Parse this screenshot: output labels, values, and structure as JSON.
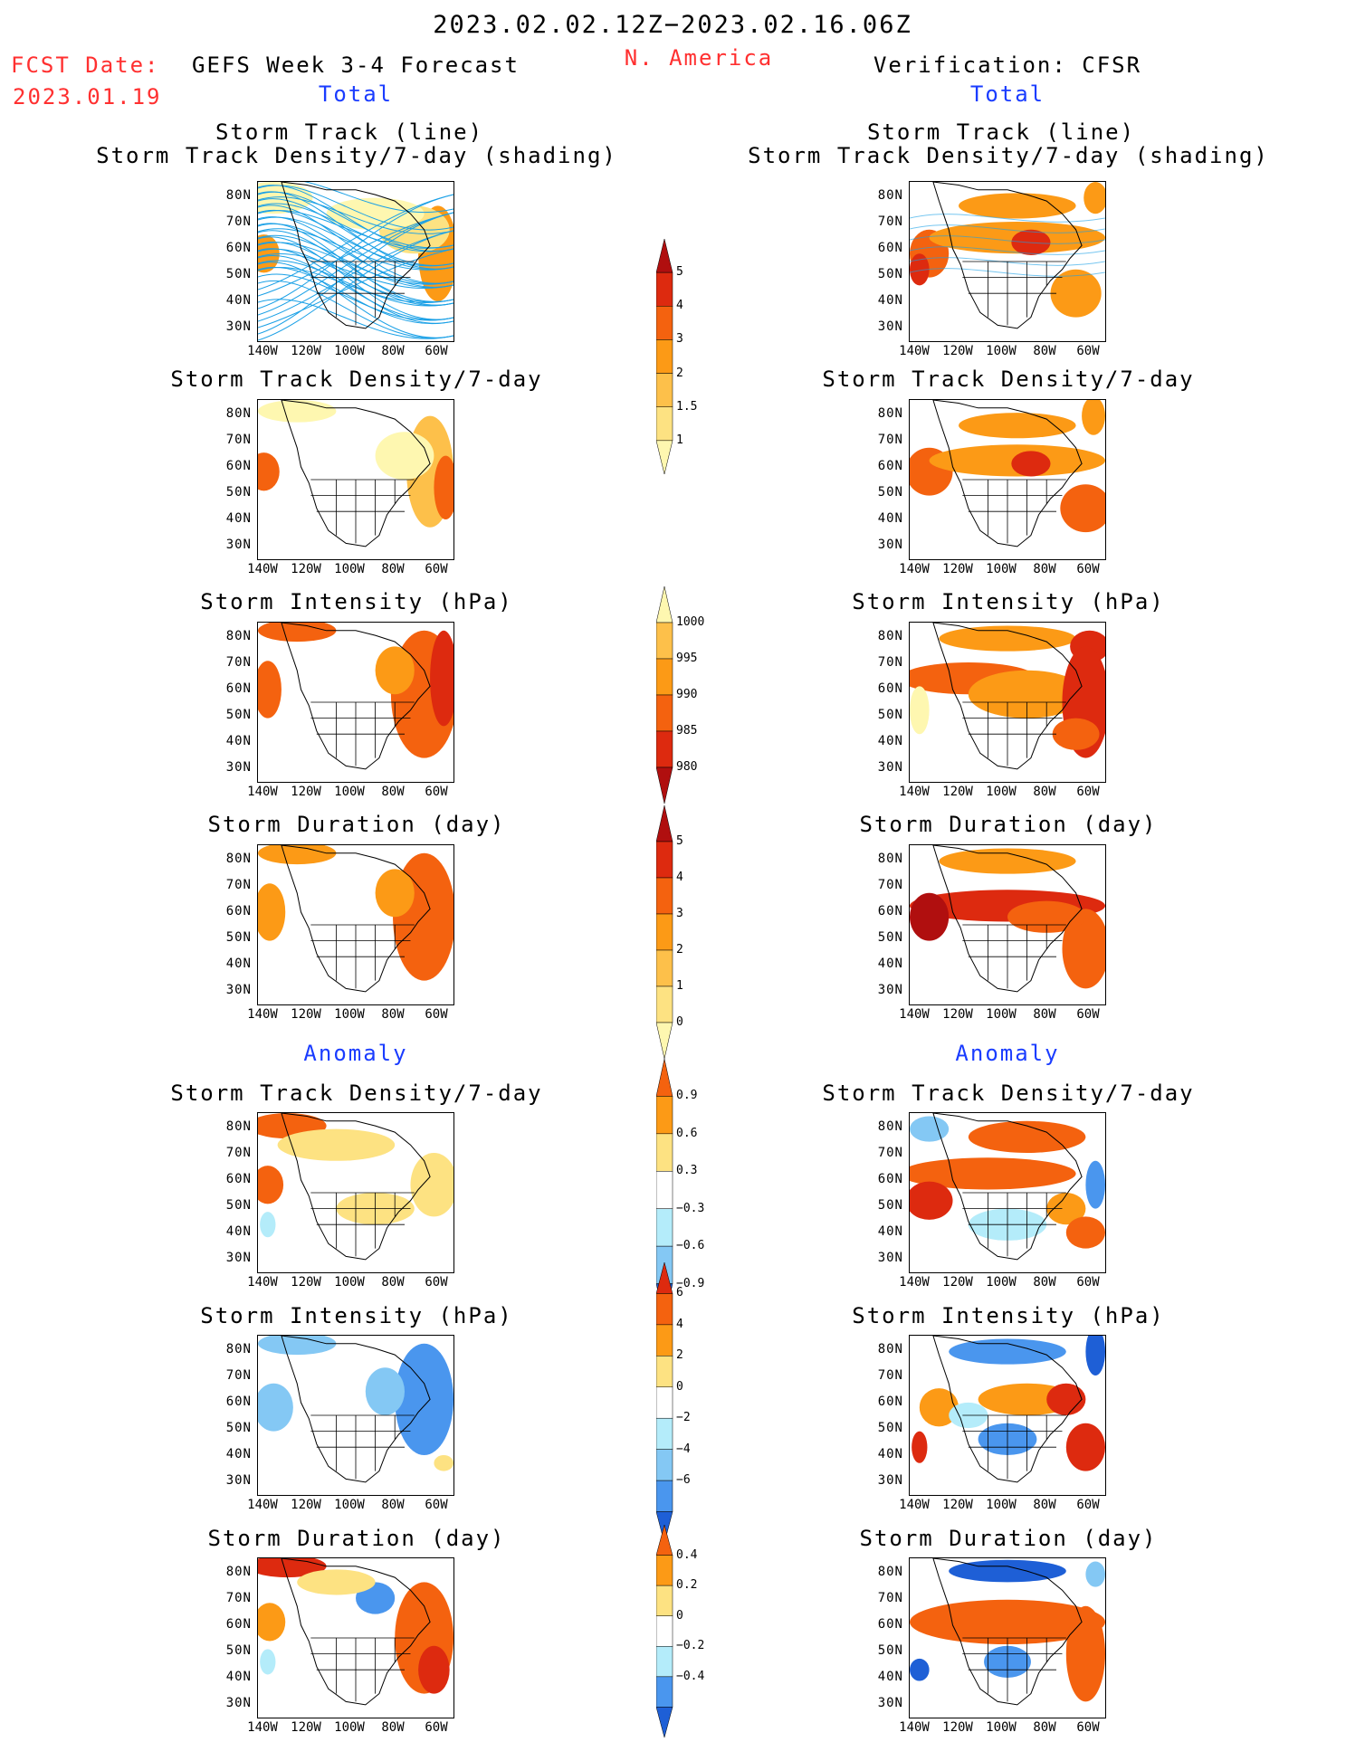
{
  "header": {
    "period": "2023.02.02.12Z−2023.02.16.06Z",
    "region": "N. America",
    "fcst_label": "FCST Date:",
    "fcst_date": "2023.01.19",
    "left_title": "GEFS Week 3-4 Forecast",
    "right_title": "Verification: CFSR",
    "left_total": "Total",
    "right_total": "Total",
    "left_anomaly": "Anomaly",
    "right_anomaly": "Anomaly"
  },
  "panel_titles": {
    "track_line": "Storm Track (line)",
    "track_shading": "Storm Track Density/7-day (shading)",
    "density": "Storm Track Density/7-day",
    "intensity": "Storm Intensity (hPa)",
    "duration": "Storm Duration (day)"
  },
  "colors": {
    "lightyellow": "#fef7b0",
    "yellow": "#fde282",
    "lightorange": "#fdc04a",
    "orange": "#fc9a16",
    "darkorange": "#f4620f",
    "red": "#dd2a0f",
    "darkred": "#b00f0f",
    "lightblue": "#b4ecfa",
    "skyblue": "#84c8f4",
    "blue": "#4a96ee",
    "darkblue": "#1e5fd6",
    "track": "#1aa0e6"
  },
  "chart_data": [
    {
      "type": "heatmap",
      "id": "fc-track",
      "title": "Storm Track (line)",
      "subtitle": "Storm Track Density/7-day (shading)",
      "xticks": [
        "140W",
        "120W",
        "100W",
        "80W",
        "60W"
      ],
      "yticks": [
        "80N",
        "70N",
        "60N",
        "50N",
        "40N",
        "30N"
      ]
    },
    {
      "type": "heatmap",
      "id": "ob-track",
      "title": "Storm Track (line)",
      "subtitle": "Storm Track Density/7-day (shading)",
      "xticks": [
        "140W",
        "120W",
        "100W",
        "80W",
        "60W"
      ],
      "yticks": [
        "80N",
        "70N",
        "60N",
        "50N",
        "40N",
        "30N"
      ]
    },
    {
      "type": "heatmap",
      "id": "fc-density",
      "title": "Storm Track Density/7-day",
      "xticks": [
        "140W",
        "120W",
        "100W",
        "80W",
        "60W"
      ],
      "yticks": [
        "80N",
        "70N",
        "60N",
        "50N",
        "40N",
        "30N"
      ]
    },
    {
      "type": "heatmap",
      "id": "ob-density",
      "title": "Storm Track Density/7-day",
      "xticks": [
        "140W",
        "120W",
        "100W",
        "80W",
        "60W"
      ],
      "yticks": [
        "80N",
        "70N",
        "60N",
        "50N",
        "40N",
        "30N"
      ]
    },
    {
      "type": "heatmap",
      "id": "fc-int",
      "title": "Storm Intensity (hPa)",
      "xticks": [
        "140W",
        "120W",
        "100W",
        "80W",
        "60W"
      ],
      "yticks": [
        "80N",
        "70N",
        "60N",
        "50N",
        "40N",
        "30N"
      ]
    },
    {
      "type": "heatmap",
      "id": "ob-int",
      "title": "Storm Intensity (hPa)",
      "xticks": [
        "140W",
        "120W",
        "100W",
        "80W",
        "60W"
      ],
      "yticks": [
        "80N",
        "70N",
        "60N",
        "50N",
        "40N",
        "30N"
      ]
    },
    {
      "type": "heatmap",
      "id": "fc-dur",
      "title": "Storm Duration (day)",
      "xticks": [
        "140W",
        "120W",
        "100W",
        "80W",
        "60W"
      ],
      "yticks": [
        "80N",
        "70N",
        "60N",
        "50N",
        "40N",
        "30N"
      ]
    },
    {
      "type": "heatmap",
      "id": "ob-dur",
      "title": "Storm Duration (day)",
      "xticks": [
        "140W",
        "120W",
        "100W",
        "80W",
        "60W"
      ],
      "yticks": [
        "80N",
        "70N",
        "60N",
        "50N",
        "40N",
        "30N"
      ]
    },
    {
      "type": "heatmap",
      "id": "fc-adens",
      "title": "Storm Track Density/7-day",
      "xticks": [
        "140W",
        "120W",
        "100W",
        "80W",
        "60W"
      ],
      "yticks": [
        "80N",
        "70N",
        "60N",
        "50N",
        "40N",
        "30N"
      ]
    },
    {
      "type": "heatmap",
      "id": "ob-adens",
      "title": "Storm Track Density/7-day",
      "xticks": [
        "140W",
        "120W",
        "100W",
        "80W",
        "60W"
      ],
      "yticks": [
        "80N",
        "70N",
        "60N",
        "50N",
        "40N",
        "30N"
      ]
    },
    {
      "type": "heatmap",
      "id": "fc-aint",
      "title": "Storm Intensity (hPa)",
      "xticks": [
        "140W",
        "120W",
        "100W",
        "80W",
        "60W"
      ],
      "yticks": [
        "80N",
        "70N",
        "60N",
        "50N",
        "40N",
        "30N"
      ]
    },
    {
      "type": "heatmap",
      "id": "ob-aint",
      "title": "Storm Intensity (hPa)",
      "xticks": [
        "140W",
        "120W",
        "100W",
        "80W",
        "60W"
      ],
      "yticks": [
        "80N",
        "70N",
        "60N",
        "50N",
        "40N",
        "30N"
      ]
    },
    {
      "type": "heatmap",
      "id": "fc-adur",
      "title": "Storm Duration (day)",
      "xticks": [
        "140W",
        "120W",
        "100W",
        "80W",
        "60W"
      ],
      "yticks": [
        "80N",
        "70N",
        "60N",
        "50N",
        "40N",
        "30N"
      ]
    },
    {
      "type": "heatmap",
      "id": "ob-adur",
      "title": "Storm Duration (day)",
      "xticks": [
        "140W",
        "120W",
        "100W",
        "80W",
        "60W"
      ],
      "yticks": [
        "80N",
        "70N",
        "60N",
        "50N",
        "40N",
        "30N"
      ]
    }
  ],
  "colorbars": {
    "density": {
      "labels": [
        "5",
        "4",
        "3",
        "2",
        "1.5",
        "1"
      ],
      "colors": [
        "#b00f0f",
        "#dd2a0f",
        "#f4620f",
        "#fc9a16",
        "#fdc04a",
        "#fde282",
        "#fef7b0"
      ]
    },
    "intensity": {
      "labels": [
        "1000",
        "995",
        "990",
        "985",
        "980"
      ],
      "colors": [
        "#fef7b0",
        "#fdc04a",
        "#fc9a16",
        "#f4620f",
        "#dd2a0f",
        "#b00f0f"
      ]
    },
    "duration": {
      "labels": [
        "5",
        "4",
        "3",
        "2",
        "1",
        "0"
      ],
      "colors": [
        "#b00f0f",
        "#dd2a0f",
        "#f4620f",
        "#fc9a16",
        "#fdc04a",
        "#fde282",
        "#fef7b0"
      ]
    },
    "anom_density": {
      "labels": [
        "0.9",
        "0.6",
        "0.3",
        "−0.3",
        "−0.6",
        "−0.9"
      ],
      "colors": [
        "#f4620f",
        "#fc9a16",
        "#fde282",
        "#ffffff",
        "#b4ecfa",
        "#84c8f4",
        "#1e5fd6"
      ]
    },
    "anom_intensity": {
      "labels": [
        "6",
        "4",
        "2",
        "0",
        "−2",
        "−4",
        "−6"
      ],
      "colors": [
        "#dd2a0f",
        "#f4620f",
        "#fc9a16",
        "#fde282",
        "#ffffff",
        "#b4ecfa",
        "#84c8f4",
        "#4a96ee",
        "#1e5fd6"
      ]
    },
    "anom_duration": {
      "labels": [
        "0.4",
        "0.2",
        "0",
        "−0.2",
        "−0.4"
      ],
      "colors": [
        "#f4620f",
        "#fc9a16",
        "#fde282",
        "#ffffff",
        "#b4ecfa",
        "#4a96ee",
        "#1e5fd6"
      ]
    }
  }
}
